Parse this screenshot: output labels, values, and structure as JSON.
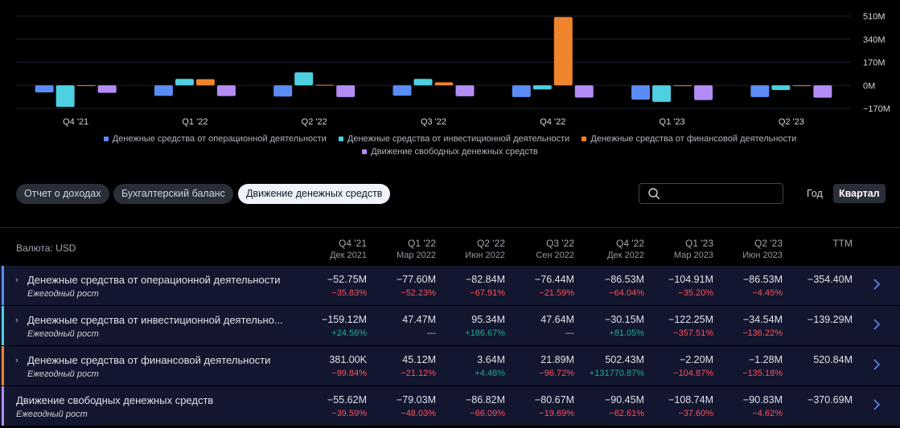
{
  "chart_data": {
    "type": "bar",
    "categories": [
      "Q4 '21",
      "Q1 '22",
      "Q2 '22",
      "Q3 '22",
      "Q4 '22",
      "Q1 '23",
      "Q2 '23"
    ],
    "y_ticks": [
      "510M",
      "340M",
      "170M",
      "0M",
      "−170M"
    ],
    "ylim": [
      -170,
      510
    ],
    "series": [
      {
        "name": "Денежные средства от операционной деятельности",
        "color": "#5b8cf6",
        "values": [
          -52.75,
          -77.6,
          -82.84,
          -76.44,
          -86.53,
          -104.91,
          -86.53
        ]
      },
      {
        "name": "Денежные средства от инвестиционной деятельности",
        "color": "#4dd0e1",
        "values": [
          -159.12,
          47.47,
          95.34,
          47.64,
          -30.15,
          -122.25,
          -34.54
        ]
      },
      {
        "name": "Денежные средства от финансовой деятельности",
        "color": "#f0842c",
        "values": [
          0.381,
          45.12,
          3.64,
          21.89,
          502.43,
          -2.2,
          -1.28
        ]
      },
      {
        "name": "Движение свободных денежных средств",
        "color": "#b48cf6",
        "values": [
          -55.62,
          -79.03,
          -86.82,
          -80.67,
          -90.45,
          -108.74,
          -90.83
        ]
      }
    ]
  },
  "legend": {
    "row1": [
      "Денежные средства от операционной деятельности",
      "Денежные средства от инвестиционной деятельности",
      "Денежные средства от финансовой деятельности"
    ],
    "row2": [
      "Движение свободных денежных средств"
    ]
  },
  "tabs": [
    "Отчет о доходах",
    "Бухгалтерский баланс",
    "Движение денежных средств"
  ],
  "search": {
    "placeholder": "",
    "value": ""
  },
  "periods": [
    "Год",
    "Квартал"
  ],
  "table": {
    "currency_label": "Валюта: USD",
    "headers": [
      {
        "q": "Q4 '21",
        "d": "Дек 2021"
      },
      {
        "q": "Q1 '22",
        "d": "Мар 2022"
      },
      {
        "q": "Q2 '22",
        "d": "Июн 2022"
      },
      {
        "q": "Q3 '22",
        "d": "Сен 2022"
      },
      {
        "q": "Q4 '22",
        "d": "Дек 2022"
      },
      {
        "q": "Q1 '23",
        "d": "Мар 2023"
      },
      {
        "q": "Q2 '23",
        "d": "Июн 2023"
      }
    ],
    "ttm_label": "TTM",
    "rows": [
      {
        "label": "Денежные средства от операционной деятельности",
        "sub": "Ежегодный рост",
        "color": "#5b8cf6",
        "values": [
          "−52.75M",
          "−77.60M",
          "−82.84M",
          "−76.44M",
          "−86.53M",
          "−104.91M",
          "−86.53M"
        ],
        "growth": [
          "−35.83%",
          "−52.23%",
          "−67.91%",
          "−21.59%",
          "−64.04%",
          "−35.20%",
          "−4.45%"
        ],
        "ttm": "−354.40M"
      },
      {
        "label": "Денежные средства от инвестиционной деятельно...",
        "sub": "Ежегодный рост",
        "color": "#4dd0e1",
        "values": [
          "−159.12M",
          "47.47M",
          "95.34M",
          "47.64M",
          "−30.15M",
          "−122.25M",
          "−34.54M"
        ],
        "growth": [
          "+24.56%",
          "—",
          "+186.67%",
          "—",
          "+81.05%",
          "−357.51%",
          "−136.22%"
        ],
        "ttm": "−139.29M"
      },
      {
        "label": "Денежные средства от финансовой деятельности",
        "sub": "Ежегодный рост",
        "color": "#f0842c",
        "values": [
          "381.00K",
          "45.12M",
          "3.64M",
          "21.89M",
          "502.43M",
          "−2.20M",
          "−1.28M"
        ],
        "growth": [
          "−99.84%",
          "−21.12%",
          "+4.48%",
          "−96.72%",
          "+131770.87%",
          "−104.87%",
          "−135.18%"
        ],
        "ttm": "520.84M"
      },
      {
        "label": "Движение свободных денежных средств",
        "sub": "Ежегодный рост",
        "color": "#b48cf6",
        "values": [
          "−55.62M",
          "−79.03M",
          "−86.82M",
          "−80.67M",
          "−90.45M",
          "−108.74M",
          "−90.83M"
        ],
        "growth": [
          "−39.59%",
          "−48.03%",
          "−66.09%",
          "−19.69%",
          "−62.61%",
          "−37.60%",
          "−4.62%"
        ],
        "ttm": "−370.69M"
      }
    ]
  }
}
